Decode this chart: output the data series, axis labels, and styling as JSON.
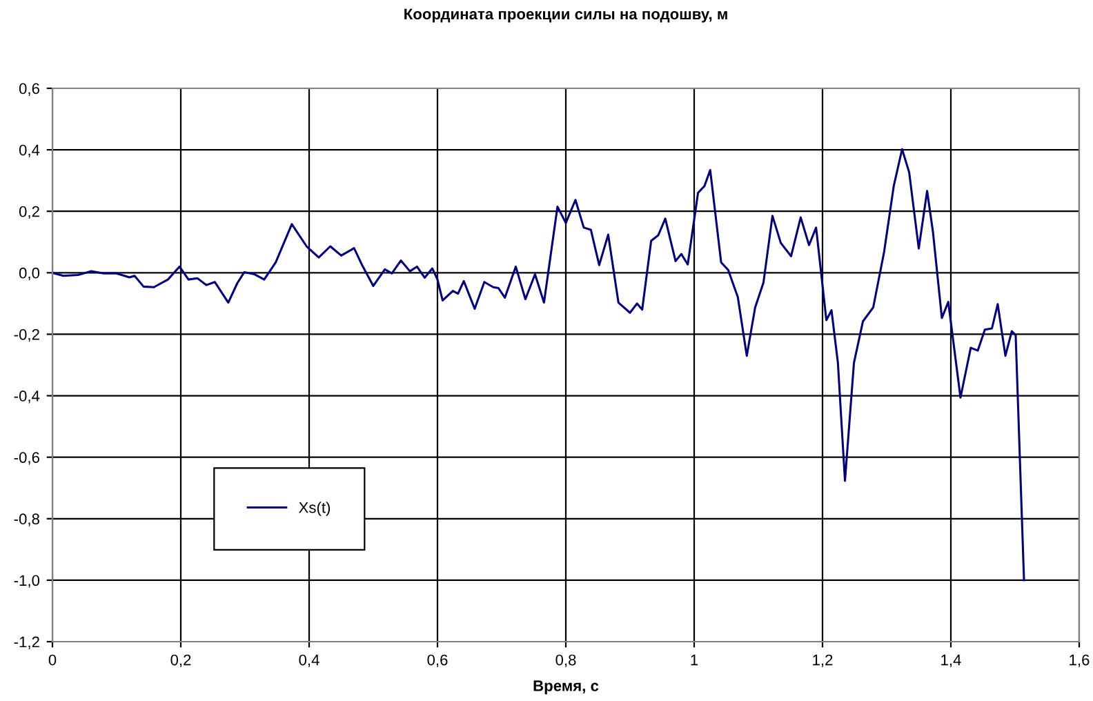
{
  "chart_data": {
    "type": "line",
    "title": "Координата проекции силы на подошву, м",
    "xlabel": "Время, с",
    "x": [
      0,
      0.017,
      0.04,
      0.06,
      0.08,
      0.1,
      0.12,
      0.128,
      0.142,
      0.158,
      0.18,
      0.198,
      0.212,
      0.226,
      0.24,
      0.253,
      0.274,
      0.288,
      0.299,
      0.315,
      0.33,
      0.348,
      0.373,
      0.396,
      0.415,
      0.433,
      0.45,
      0.47,
      0.483,
      0.5,
      0.518,
      0.529,
      0.543,
      0.557,
      0.568,
      0.58,
      0.592,
      0.6,
      0.608,
      0.624,
      0.632,
      0.641,
      0.658,
      0.673,
      0.687,
      0.695,
      0.705,
      0.722,
      0.737,
      0.752,
      0.766,
      0.787,
      0.8,
      0.815,
      0.828,
      0.839,
      0.852,
      0.866,
      0.882,
      0.9,
      0.911,
      0.919,
      0.933,
      0.944,
      0.955,
      0.971,
      0.98,
      0.99,
      1.006,
      1.016,
      1.025,
      1.042,
      1.053,
      1.068,
      1.082,
      1.095,
      1.108,
      1.122,
      1.135,
      1.151,
      1.166,
      1.179,
      1.19,
      1.206,
      1.214,
      1.224,
      1.235,
      1.249,
      1.263,
      1.279,
      1.296,
      1.311,
      1.324,
      1.335,
      1.35,
      1.363,
      1.372,
      1.386,
      1.396,
      1.415,
      1.431,
      1.442,
      1.453,
      1.464,
      1.473,
      1.485,
      1.495,
      1.501,
      1.514
    ],
    "series": [
      {
        "name": "Xs(t)",
        "color": "#000080",
        "values": [
          0,
          -0.01,
          -0.007,
          0.005,
          -0.002,
          -0.002,
          -0.015,
          -0.01,
          -0.045,
          -0.047,
          -0.022,
          0.02,
          -0.022,
          -0.018,
          -0.04,
          -0.03,
          -0.097,
          -0.034,
          0.002,
          -0.005,
          -0.022,
          0.034,
          0.158,
          0.086,
          0.05,
          0.086,
          0.056,
          0.08,
          0.023,
          -0.043,
          0.011,
          -0.002,
          0.04,
          0.005,
          0.02,
          -0.016,
          0.014,
          -0.022,
          -0.09,
          -0.059,
          -0.068,
          -0.027,
          -0.117,
          -0.03,
          -0.047,
          -0.05,
          -0.081,
          0.02,
          -0.086,
          -0.005,
          -0.097,
          0.215,
          0.162,
          0.237,
          0.147,
          0.14,
          0.025,
          0.124,
          -0.097,
          -0.13,
          -0.1,
          -0.12,
          0.104,
          0.122,
          0.176,
          0.038,
          0.061,
          0.027,
          0.26,
          0.282,
          0.334,
          0.034,
          0.009,
          -0.079,
          -0.27,
          -0.113,
          -0.032,
          0.185,
          0.097,
          0.054,
          0.18,
          0.09,
          0.147,
          -0.154,
          -0.122,
          -0.293,
          -0.677,
          -0.293,
          -0.158,
          -0.113,
          0.068,
          0.282,
          0.402,
          0.327,
          0.079,
          0.266,
          0.135,
          -0.147,
          -0.095,
          -0.406,
          -0.244,
          -0.253,
          -0.185,
          -0.181,
          -0.102,
          -0.27,
          -0.19,
          -0.203,
          -1.0
        ]
      }
    ],
    "xlim": [
      0,
      1.6
    ],
    "xticks": [
      0,
      {
        "value": 0.2,
        "label": "0,2"
      },
      {
        "value": 0.4,
        "label": "0,4"
      },
      {
        "value": 0.6,
        "label": "0,6"
      },
      {
        "value": 0.8,
        "label": "0,8"
      },
      1,
      {
        "value": 1.2,
        "label": "1,2"
      },
      {
        "value": 1.4,
        "label": "1,4"
      },
      {
        "value": 1.6,
        "label": "1,6"
      }
    ],
    "ylim": [
      -1.2,
      0.6
    ],
    "yticks": [
      {
        "value": -1.2,
        "label": "-1,2"
      },
      {
        "value": -1.0,
        "label": "-1,0"
      },
      {
        "value": -0.8,
        "label": "-0,8"
      },
      {
        "value": -0.6,
        "label": "-0,6"
      },
      {
        "value": -0.4,
        "label": "-0,4"
      },
      {
        "value": -0.2,
        "label": "-0,2"
      },
      {
        "value": 0,
        "label": "0,0"
      },
      {
        "value": 0.2,
        "label": "0,2"
      },
      {
        "value": 0.4,
        "label": "0,4"
      },
      {
        "value": 0.6,
        "label": "0,6"
      }
    ],
    "grid": true,
    "legend": "left",
    "marker": "none",
    "line_style": "solid"
  }
}
